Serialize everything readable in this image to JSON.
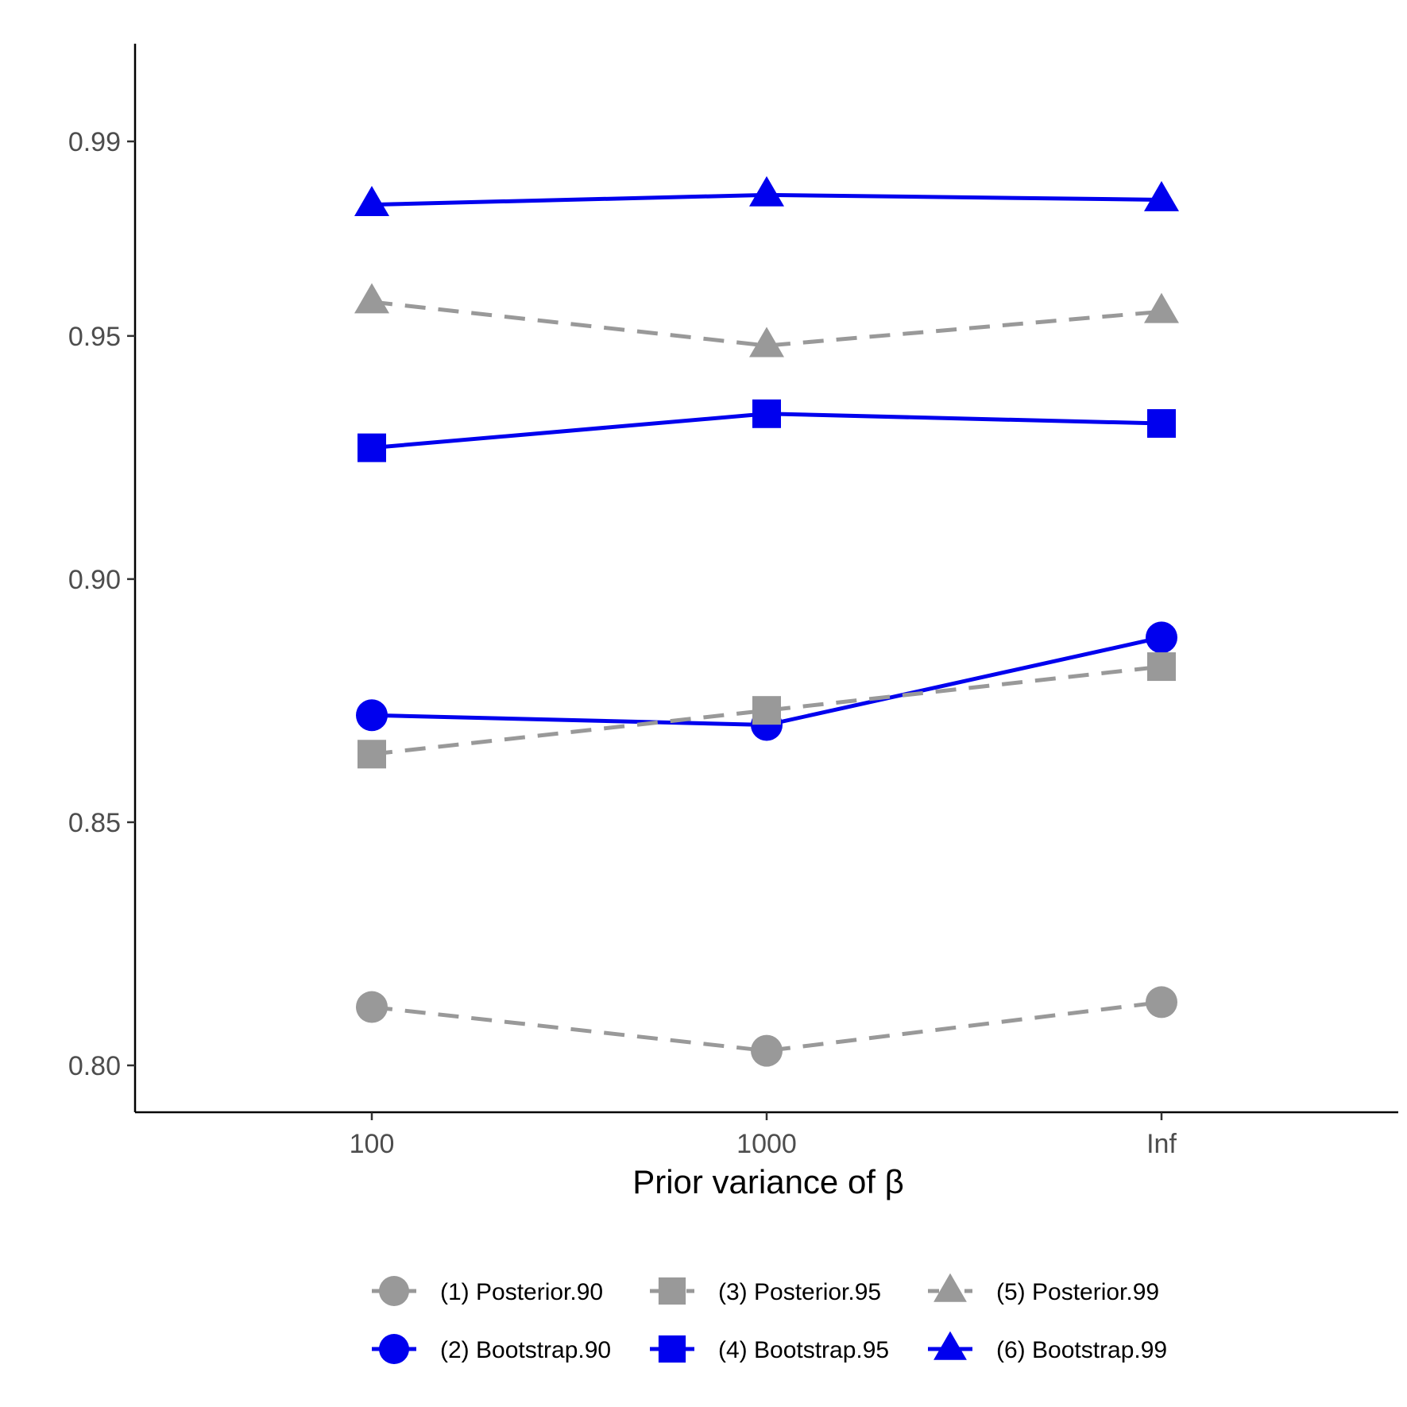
{
  "chart_data": {
    "type": "line",
    "title": "",
    "xlabel": "Prior variance of β",
    "ylabel": "",
    "categories": [
      "100",
      "1000",
      "Inf"
    ],
    "ylim": [
      0.79,
      1.0
    ],
    "yticks": [
      0.8,
      0.85,
      0.9,
      0.95,
      0.99
    ],
    "ytick_labels": [
      "0.80",
      "0.85",
      "0.90",
      "0.95",
      "0.99"
    ],
    "grid": false,
    "legend_position": "bottom",
    "series": [
      {
        "name": "(1) Posterior.90",
        "values": [
          0.812,
          0.803,
          0.813
        ],
        "color": "#999999",
        "marker": "circle",
        "linestyle": "dashed"
      },
      {
        "name": "(2) Bootstrap.90",
        "values": [
          0.872,
          0.87,
          0.888
        ],
        "color": "#0000ee",
        "marker": "circle",
        "linestyle": "solid"
      },
      {
        "name": "(3) Posterior.95",
        "values": [
          0.864,
          0.873,
          0.882
        ],
        "color": "#999999",
        "marker": "square",
        "linestyle": "dashed"
      },
      {
        "name": "(4) Bootstrap.95",
        "values": [
          0.927,
          0.934,
          0.932
        ],
        "color": "#0000ee",
        "marker": "square",
        "linestyle": "solid"
      },
      {
        "name": "(5) Posterior.99",
        "values": [
          0.957,
          0.948,
          0.955
        ],
        "color": "#999999",
        "marker": "triangle",
        "linestyle": "dashed"
      },
      {
        "name": "(6) Bootstrap.99",
        "values": [
          0.977,
          0.979,
          0.978
        ],
        "color": "#0000ee",
        "marker": "triangle",
        "linestyle": "solid"
      }
    ]
  }
}
